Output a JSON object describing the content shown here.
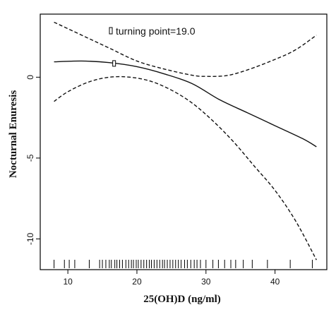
{
  "chart_data": {
    "type": "line",
    "xlabel": "25(OH)D (ng/ml)",
    "ylabel": "Nocturnal Enuresis",
    "xlim": [
      6,
      47.5
    ],
    "ylim": [
      -11.9,
      3.9
    ],
    "xticks": [
      10,
      20,
      30,
      40
    ],
    "yticks": [
      0,
      -5,
      -10
    ],
    "xtick_labels": [
      "10",
      "20",
      "30",
      "40"
    ],
    "ytick_labels": [
      "0",
      "-5",
      "-10"
    ],
    "annotation": {
      "text": "turning point=19.0",
      "x": 16.7,
      "y": 0.85
    },
    "series": [
      {
        "style": "solid",
        "points": [
          [
            8,
            0.95
          ],
          [
            12,
            1.0
          ],
          [
            16,
            0.9
          ],
          [
            20,
            0.65
          ],
          [
            24,
            0.2
          ],
          [
            28,
            -0.4
          ],
          [
            32,
            -1.4
          ],
          [
            36,
            -2.2
          ],
          [
            40,
            -3.0
          ],
          [
            44,
            -3.8
          ],
          [
            46,
            -4.3
          ]
        ]
      },
      {
        "style": "dashed",
        "points": [
          [
            8,
            3.4
          ],
          [
            10,
            3.0
          ],
          [
            13,
            2.4
          ],
          [
            16,
            1.8
          ],
          [
            20,
            1.0
          ],
          [
            24,
            0.5
          ],
          [
            28,
            0.12
          ],
          [
            30,
            0.05
          ],
          [
            33,
            0.1
          ],
          [
            36,
            0.45
          ],
          [
            40,
            1.1
          ],
          [
            43,
            1.7
          ],
          [
            46,
            2.6
          ]
        ]
      },
      {
        "style": "dashed",
        "points": [
          [
            8,
            -1.5
          ],
          [
            10,
            -0.9
          ],
          [
            13,
            -0.3
          ],
          [
            16,
            0.0
          ],
          [
            19,
            0.0
          ],
          [
            22,
            -0.25
          ],
          [
            25,
            -0.8
          ],
          [
            28,
            -1.6
          ],
          [
            31,
            -2.7
          ],
          [
            34,
            -4.0
          ],
          [
            37,
            -5.5
          ],
          [
            40,
            -7.0
          ],
          [
            43,
            -8.9
          ],
          [
            46,
            -11.3
          ]
        ]
      }
    ],
    "rug": [
      8.0,
      9.5,
      10.2,
      11.0,
      13.1,
      14.6,
      15.0,
      15.5,
      16.0,
      16.3,
      16.8,
      17.1,
      17.5,
      17.9,
      18.4,
      18.8,
      19.2,
      19.5,
      19.9,
      20.2,
      20.6,
      21.0,
      21.4,
      21.8,
      22.1,
      22.5,
      22.9,
      23.3,
      23.7,
      24.0,
      24.4,
      24.8,
      25.2,
      25.6,
      26.0,
      26.4,
      26.9,
      27.3,
      27.8,
      28.3,
      28.7,
      29.2,
      30.0,
      31.0,
      31.8,
      32.7,
      33.6,
      34.3,
      35.4,
      36.7,
      38.9,
      42.2,
      45.4
    ]
  }
}
